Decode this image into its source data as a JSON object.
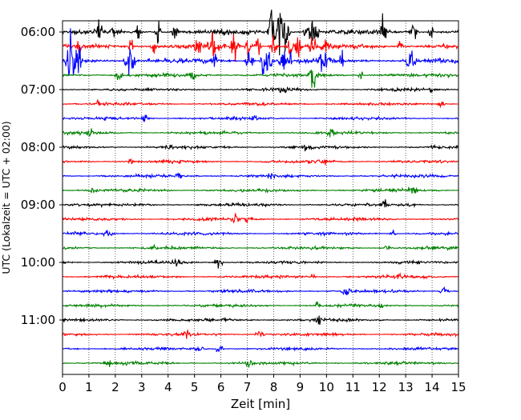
{
  "chart_data": {
    "type": "line",
    "title": "",
    "xlabel": "Zeit  [min]",
    "ylabel": "UTC (Lokalzeit = UTC + 02:00)",
    "xlim": [
      0,
      15
    ],
    "x_ticks": [
      "0",
      "1",
      "2",
      "3",
      "4",
      "5",
      "6",
      "7",
      "8",
      "9",
      "10",
      "11",
      "12",
      "13",
      "14",
      "15"
    ],
    "y_ticks": [
      "06:00",
      "07:00",
      "08:00",
      "09:00",
      "10:00",
      "11:00"
    ],
    "trace_interval_min": 15,
    "vertical_grid": true,
    "grid_style": "dotted",
    "legend": "none",
    "colors_cycle": [
      "#000000",
      "#ff0000",
      "#0000ff",
      "#008000"
    ],
    "traces": [
      {
        "start": "06:00",
        "color": "#000000",
        "activity": "high"
      },
      {
        "start": "06:15",
        "color": "#ff0000",
        "activity": "high"
      },
      {
        "start": "06:30",
        "color": "#0000ff",
        "activity": "high"
      },
      {
        "start": "06:45",
        "color": "#008000",
        "activity": "medium"
      },
      {
        "start": "07:00",
        "color": "#000000",
        "activity": "low"
      },
      {
        "start": "07:15",
        "color": "#ff0000",
        "activity": "low"
      },
      {
        "start": "07:30",
        "color": "#0000ff",
        "activity": "low"
      },
      {
        "start": "07:45",
        "color": "#008000",
        "activity": "low"
      },
      {
        "start": "08:00",
        "color": "#000000",
        "activity": "low"
      },
      {
        "start": "08:15",
        "color": "#ff0000",
        "activity": "low"
      },
      {
        "start": "08:30",
        "color": "#0000ff",
        "activity": "low"
      },
      {
        "start": "08:45",
        "color": "#008000",
        "activity": "low"
      },
      {
        "start": "09:00",
        "color": "#000000",
        "activity": "low"
      },
      {
        "start": "09:15",
        "color": "#ff0000",
        "activity": "low"
      },
      {
        "start": "09:30",
        "color": "#0000ff",
        "activity": "low"
      },
      {
        "start": "09:45",
        "color": "#008000",
        "activity": "low"
      },
      {
        "start": "10:00",
        "color": "#000000",
        "activity": "low"
      },
      {
        "start": "10:15",
        "color": "#ff0000",
        "activity": "low"
      },
      {
        "start": "10:30",
        "color": "#0000ff",
        "activity": "low"
      },
      {
        "start": "10:45",
        "color": "#008000",
        "activity": "low"
      },
      {
        "start": "11:00",
        "color": "#000000",
        "activity": "low"
      },
      {
        "start": "11:15",
        "color": "#ff0000",
        "activity": "low"
      },
      {
        "start": "11:30",
        "color": "#0000ff",
        "activity": "low"
      },
      {
        "start": "11:45",
        "color": "#008000",
        "activity": "low"
      }
    ]
  }
}
